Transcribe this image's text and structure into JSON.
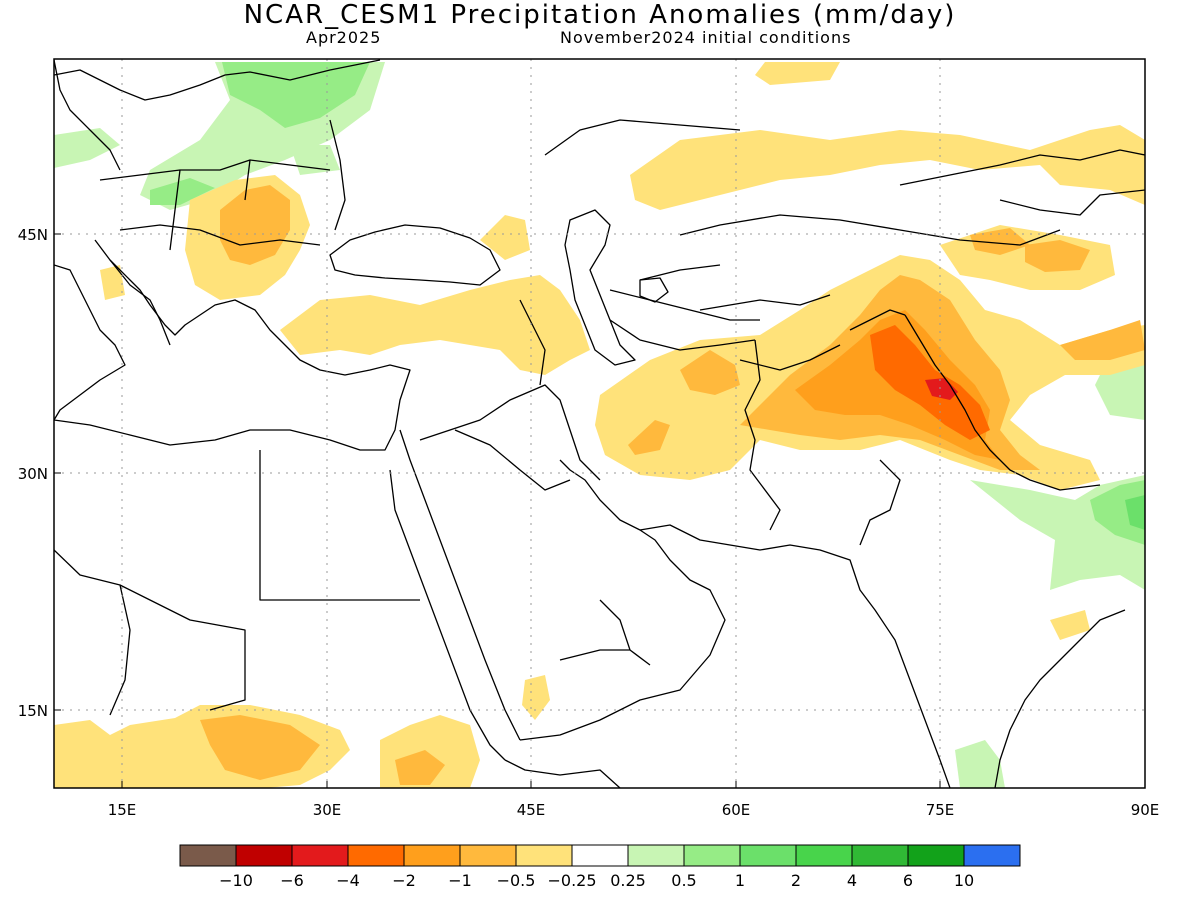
{
  "title": "NCAR_CESM1 Precipitation Anomalies (mm/day)",
  "valid_month": "Apr2025",
  "initial_conditions": "November2024 initial conditions",
  "map": {
    "lon_range": [
      10,
      90
    ],
    "lat_range": [
      10,
      55
    ],
    "lon_ticks": [
      {
        "value": 15,
        "label": "15E"
      },
      {
        "value": 30,
        "label": "30E"
      },
      {
        "value": 45,
        "label": "45E"
      },
      {
        "value": 60,
        "label": "60E"
      },
      {
        "value": 75,
        "label": "75E"
      },
      {
        "value": 90,
        "label": "90E"
      }
    ],
    "lat_ticks": [
      {
        "value": 45,
        "label": "45N"
      },
      {
        "value": 30,
        "label": "30N"
      },
      {
        "value": 15,
        "label": "15N"
      }
    ],
    "grid": "dotted"
  },
  "colorbar": {
    "colors": [
      "#7a5a4a",
      "#c00000",
      "#e31a1c",
      "#ff6a00",
      "#ff9f1c",
      "#ffb93d",
      "#ffe27a",
      "#ffffff",
      "#c8f5b4",
      "#96ec86",
      "#6be06a",
      "#48d44b",
      "#30b935",
      "#12a21a",
      "#2b6ff0"
    ],
    "labels": [
      "-10",
      "-6",
      "-4",
      "-2",
      "-1",
      "-0.5",
      "-0.25",
      "0.25",
      "0.5",
      "1",
      "2",
      "4",
      "6",
      "10"
    ]
  }
}
